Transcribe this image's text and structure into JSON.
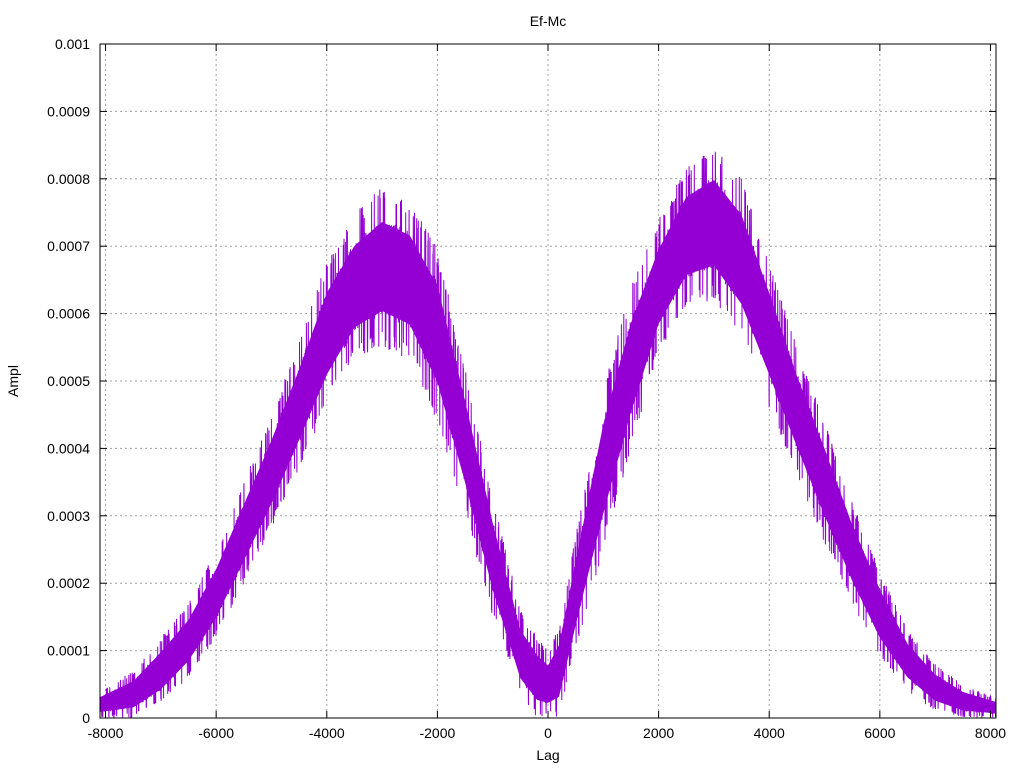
{
  "chart_data": {
    "type": "area",
    "title": "Ef-Mc",
    "xlabel": "Lag",
    "ylabel": "Ampl",
    "xlim": [
      -8100,
      8100
    ],
    "ylim": [
      0,
      0.001
    ],
    "x_ticks": [
      -8000,
      -6000,
      -4000,
      -2000,
      0,
      2000,
      4000,
      6000,
      8000
    ],
    "x_tick_labels": [
      "-8000",
      "-6000",
      "-4000",
      "-2000",
      "0",
      "2000",
      "4000",
      "6000",
      "8000"
    ],
    "y_ticks": [
      0,
      0.0001,
      0.0002,
      0.0003,
      0.0004,
      0.0005,
      0.0006,
      0.0007,
      0.0008,
      0.0009,
      0.001
    ],
    "y_tick_labels": [
      "0",
      "0.0001",
      "0.0002",
      "0.0003",
      "0.0004",
      "0.0005",
      "0.0006",
      "0.0007",
      "0.0008",
      "0.0009",
      "0.001"
    ],
    "grid": true,
    "legend": "none",
    "series": [
      {
        "color": "#9400d3",
        "envelope": {
          "x": [
            -8100,
            -7500,
            -7000,
            -6500,
            -6000,
            -5500,
            -5000,
            -4500,
            -4000,
            -3500,
            -3000,
            -2500,
            -2000,
            -1500,
            -1000,
            -500,
            -200,
            0,
            200,
            500,
            1000,
            1500,
            2000,
            2500,
            3000,
            3500,
            4000,
            4500,
            5000,
            5500,
            6000,
            6500,
            7000,
            7500,
            8100
          ],
          "lower": [
            0.0,
            0.0,
            2e-05,
            6e-05,
            0.00012,
            0.0002,
            0.00028,
            0.00037,
            0.00046,
            0.00053,
            0.00055,
            0.00053,
            0.00044,
            0.0003,
            0.00015,
            3e-05,
            0.0,
            0.0,
            0.0,
            0.0001,
            0.00025,
            0.0004,
            0.00054,
            0.00061,
            0.00062,
            0.00056,
            0.00046,
            0.00036,
            0.00026,
            0.00017,
            9e-05,
            4e-05,
            1e-05,
            0.0,
            0.0
          ],
          "upper": [
            4e-05,
            7e-05,
            0.00012,
            0.00017,
            0.00025,
            0.00035,
            0.00045,
            0.00056,
            0.00068,
            0.00075,
            0.00079,
            0.00077,
            0.0007,
            0.00052,
            0.00033,
            0.00016,
            0.00012,
            0.0001,
            0.00014,
            0.00027,
            0.00049,
            0.00064,
            0.00074,
            0.00082,
            0.00085,
            0.0008,
            0.00068,
            0.00055,
            0.00044,
            0.00032,
            0.00022,
            0.00013,
            8e-05,
            5e-05,
            3e-05
          ]
        }
      }
    ]
  }
}
